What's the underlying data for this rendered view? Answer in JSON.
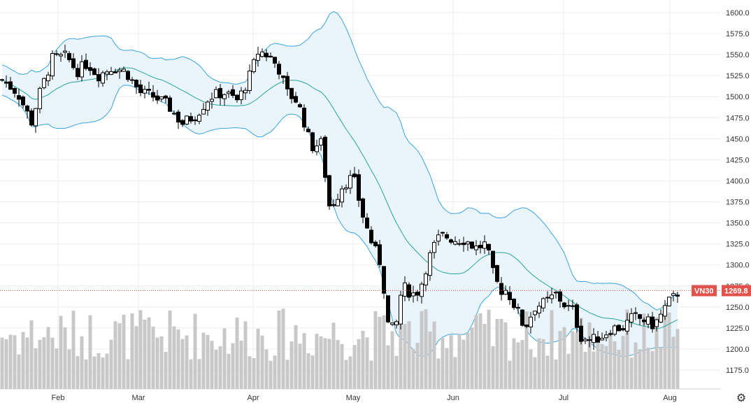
{
  "chart_data": {
    "type": "candlestick",
    "symbol": "VN30",
    "last_price": "1269.8",
    "ylim": [
      1155,
      1610
    ],
    "y_ticks": [
      "1600.0",
      "1575.0",
      "1550.0",
      "1525.0",
      "1500.0",
      "1475.0",
      "1450.0",
      "1425.0",
      "1400.0",
      "1375.0",
      "1350.0",
      "1325.0",
      "1300.0",
      "1275.0",
      "1250.0",
      "1225.0",
      "1200.0",
      "1175.0"
    ],
    "x_labels": [
      "Feb",
      "Mar",
      "Apr",
      "May",
      "Jun",
      "Jul",
      "Aug"
    ],
    "grid": true,
    "indicators": [
      "Bollinger Bands",
      "Volume"
    ],
    "colors": {
      "up_body": "#ffffff",
      "down_body": "#000000",
      "candle_outline": "#000000",
      "band_line": "#3ba3e0",
      "band_fill": "#eaf4fb",
      "mid_line": "#26a69a",
      "volume": "#c8c8c8",
      "price_badge": "#e0524b",
      "last_price_line": "#e0524b",
      "grid": "#ececec"
    },
    "price_key": [
      {
        "date": "early Jan",
        "close": 1520
      },
      {
        "date": "late Jan",
        "close": 1540
      },
      {
        "date": "mid Feb",
        "close": 1530
      },
      {
        "date": "mid Mar",
        "close": 1465
      },
      {
        "date": "early Apr",
        "close": 1555
      },
      {
        "date": "mid Apr",
        "close": 1505
      },
      {
        "date": "late Apr",
        "close": 1385
      },
      {
        "date": "mid May",
        "close": 1225
      },
      {
        "date": "early Jun",
        "close": 1340
      },
      {
        "date": "mid Jun",
        "close": 1330
      },
      {
        "date": "late Jun",
        "close": 1255
      },
      {
        "date": "early Jul",
        "close": 1245
      },
      {
        "date": "mid Jul",
        "close": 1215
      },
      {
        "date": "late Jul",
        "close": 1230
      },
      {
        "date": "early Aug",
        "close": 1269.8
      }
    ]
  },
  "ui": {
    "settings_icon": "gear-icon"
  }
}
